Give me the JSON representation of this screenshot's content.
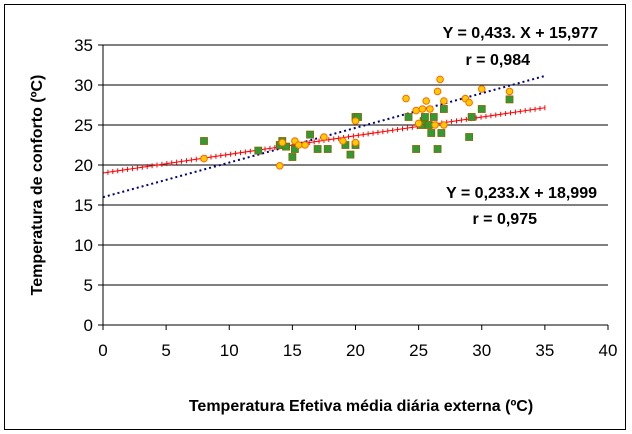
{
  "chart_data": {
    "type": "scatter",
    "xlabel": "Temperatura Efetiva média diária externa (ºC)",
    "ylabel": "Temperatura de conforto (ºC)",
    "xlim": [
      0,
      40
    ],
    "ylim": [
      0,
      35
    ],
    "xticks": [
      "0",
      "5",
      "10",
      "15",
      "20",
      "25",
      "30",
      "35",
      "40"
    ],
    "yticks": [
      "0",
      "5",
      "10",
      "15",
      "20",
      "25",
      "30",
      "35"
    ],
    "grid": "horizontal",
    "annotations": {
      "eq_upper": "Y = 0,433. X + 15,977",
      "r_upper": "r = 0,984",
      "eq_lower": "Y = 0,233.X + 18,999",
      "r_lower": "r = 0,975"
    },
    "trendlines": [
      {
        "slope": 0.433,
        "intercept": 15.977,
        "x": [
          0,
          35
        ],
        "color": "#000080",
        "style": "dotted"
      },
      {
        "slope": 0.233,
        "intercept": 18.999,
        "x": [
          0,
          35
        ],
        "color": "#ff0000",
        "style": "crosses"
      }
    ],
    "series": [
      {
        "marker": "square",
        "color": "#339933",
        "edge": "#806600",
        "points": [
          [
            8,
            23
          ],
          [
            12.3,
            21.8
          ],
          [
            14,
            22.5
          ],
          [
            14.2,
            23
          ],
          [
            14.5,
            22.3
          ],
          [
            15,
            21
          ],
          [
            15.2,
            22
          ],
          [
            16.4,
            23.8
          ],
          [
            17,
            22
          ],
          [
            17.8,
            22
          ],
          [
            19.2,
            22.5
          ],
          [
            19.6,
            21.3
          ],
          [
            20,
            26
          ],
          [
            20,
            22.5
          ],
          [
            20.2,
            26
          ],
          [
            24.2,
            26
          ],
          [
            24.8,
            22
          ],
          [
            25.2,
            25
          ],
          [
            25.4,
            25.5
          ],
          [
            25.5,
            26
          ],
          [
            25.8,
            25
          ],
          [
            26,
            24
          ],
          [
            26.2,
            26
          ],
          [
            26.5,
            22
          ],
          [
            26.8,
            24
          ],
          [
            27,
            27
          ],
          [
            29,
            23.5
          ],
          [
            29.2,
            26
          ],
          [
            30,
            27
          ],
          [
            32.2,
            28.2
          ]
        ]
      },
      {
        "marker": "circle",
        "color": "#ffcc00",
        "edge": "#ff6600",
        "points": [
          [
            8,
            20.8
          ],
          [
            14,
            19.9
          ],
          [
            14.2,
            22.8
          ],
          [
            15.2,
            23
          ],
          [
            15.5,
            22.5
          ],
          [
            16,
            22.5
          ],
          [
            17.5,
            23.5
          ],
          [
            19,
            23
          ],
          [
            20,
            25.5
          ],
          [
            20,
            22.8
          ],
          [
            24,
            28.3
          ],
          [
            24.8,
            26.8
          ],
          [
            25,
            25.2
          ],
          [
            25.3,
            27
          ],
          [
            25.6,
            28
          ],
          [
            25.9,
            27
          ],
          [
            26.3,
            25
          ],
          [
            26.5,
            29.2
          ],
          [
            26.7,
            30.7
          ],
          [
            27,
            28
          ],
          [
            27,
            25
          ],
          [
            28.7,
            28.3
          ],
          [
            29,
            27.8
          ],
          [
            30,
            29.5
          ],
          [
            32.2,
            29.2
          ]
        ]
      }
    ]
  }
}
